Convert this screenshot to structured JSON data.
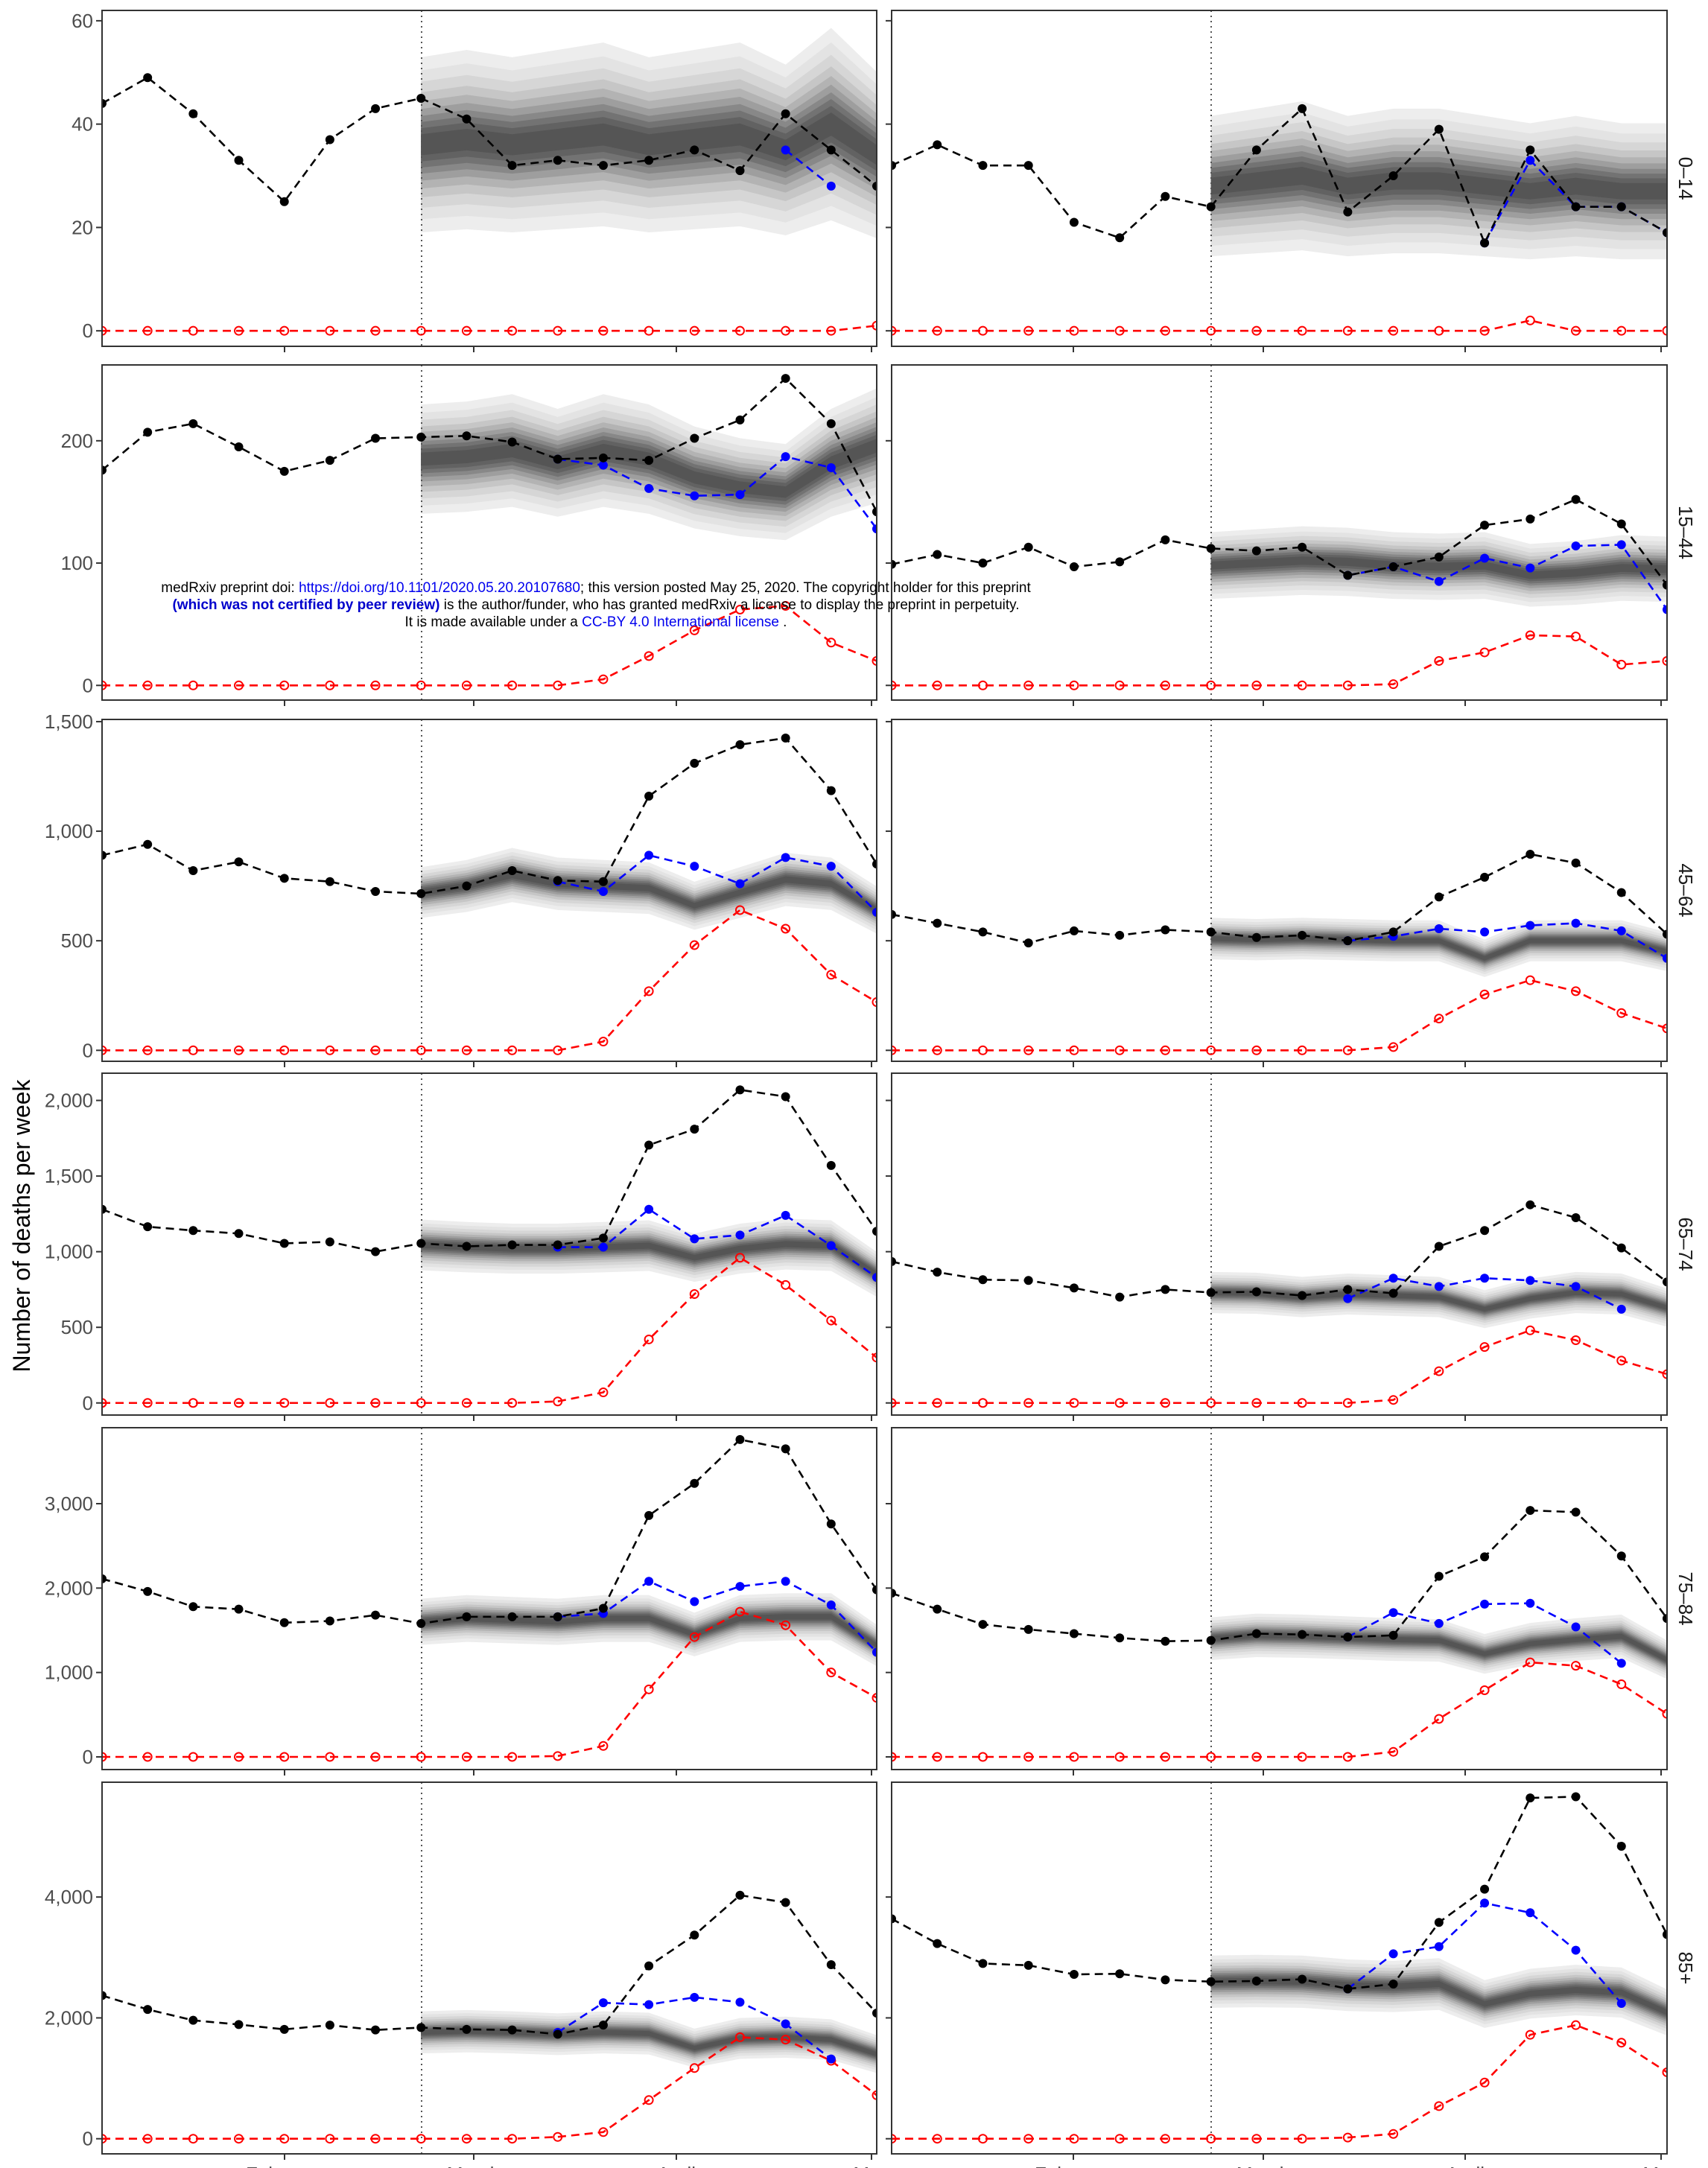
{
  "chart_data": {
    "type": "line",
    "ylabel": "Number of deaths per week",
    "x_ticks": [
      "February",
      "March",
      "April",
      "May"
    ],
    "colors": {
      "observed": "#000000",
      "adjusted": "#0000ff",
      "covid": "#ff0000",
      "band": "#555555"
    },
    "panels": [
      {
        "group": "0–14",
        "yticks": [
          "0",
          "20",
          "40",
          "60"
        ],
        "ylim": [
          -3,
          62
        ],
        "left": {
          "observed": [
            44,
            49,
            42,
            33,
            25,
            37,
            43,
            45,
            41,
            32,
            33,
            32,
            33,
            35,
            31,
            42,
            35,
            28
          ],
          "adjusted_from": 15,
          "adjusted": [
            35,
            28
          ],
          "median": [
            36,
            37,
            36,
            37,
            38,
            36,
            37,
            38,
            35,
            40,
            34,
            35,
            34
          ],
          "covid": [
            0,
            0,
            0,
            0,
            0,
            0,
            0,
            0,
            0,
            0,
            0,
            0,
            0,
            0,
            0,
            0,
            0,
            1
          ]
        },
        "right": {
          "observed": [
            32,
            36,
            32,
            32,
            21,
            18,
            26,
            24,
            35,
            43,
            23,
            30,
            39,
            17,
            35,
            24,
            24,
            19
          ],
          "adjusted_from": 13,
          "adjusted": [
            17,
            33,
            24,
            24,
            19
          ],
          "median": [
            28,
            29,
            30,
            28,
            29,
            29,
            28,
            27,
            28,
            27,
            27,
            26,
            24
          ],
          "covid": [
            0,
            0,
            0,
            0,
            0,
            0,
            0,
            0,
            0,
            0,
            0,
            0,
            0,
            0,
            2,
            0,
            0,
            0
          ]
        }
      },
      {
        "group": "15–44",
        "yticks": [
          "0",
          "100",
          "200"
        ],
        "ylim": [
          -12,
          262
        ],
        "left": {
          "observed": [
            176,
            207,
            214,
            195,
            175,
            184,
            202,
            203,
            204,
            199,
            185,
            186,
            184,
            202,
            217,
            251,
            214,
            142
          ],
          "adjusted_from": 10,
          "adjusted": [
            185,
            180,
            161,
            155,
            156,
            187,
            178,
            128
          ],
          "median": [
            185,
            187,
            192,
            182,
            192,
            185,
            170,
            162,
            158,
            182,
            196,
            185,
            140
          ],
          "covid": [
            0,
            0,
            0,
            0,
            0,
            0,
            0,
            0,
            0,
            0,
            0,
            5,
            24,
            45,
            62,
            65,
            35,
            20
          ]
        },
        "right": {
          "observed": [
            99,
            107,
            100,
            113,
            97,
            101,
            119,
            112,
            110,
            113,
            90,
            97,
            105,
            131,
            136,
            152,
            132,
            82
          ],
          "adjusted_from": 10,
          "adjusted": [
            90,
            97,
            85,
            104,
            96,
            114,
            115,
            62
          ],
          "median": [
            98,
            100,
            102,
            101,
            98,
            97,
            98,
            90,
            92,
            96,
            95,
            88,
            80
          ],
          "covid": [
            0,
            0,
            0,
            0,
            0,
            0,
            0,
            0,
            0,
            0,
            0,
            1,
            20,
            27,
            41,
            40,
            17,
            20
          ]
        }
      },
      {
        "group": "45–64",
        "yticks": [
          "0",
          "500",
          "1,000",
          "1,500"
        ],
        "ylim": [
          -50,
          1510
        ],
        "left": {
          "observed": [
            890,
            940,
            820,
            860,
            785,
            770,
            725,
            715,
            750,
            820,
            775,
            770,
            1160,
            1310,
            1395,
            1425,
            1185,
            850
          ],
          "adjusted_from": 10,
          "adjusted": [
            770,
            725,
            890,
            840,
            760,
            880,
            840,
            630
          ],
          "median": [
            720,
            750,
            800,
            760,
            750,
            740,
            660,
            720,
            780,
            760,
            640
          ],
          "covid": [
            0,
            0,
            0,
            0,
            0,
            0,
            0,
            0,
            0,
            0,
            0,
            40,
            270,
            480,
            640,
            555,
            345,
            220
          ]
        },
        "right": {
          "observed": [
            620,
            580,
            540,
            490,
            545,
            525,
            550,
            540,
            515,
            525,
            500,
            540,
            700,
            790,
            895,
            855,
            720,
            530
          ],
          "adjusted_from": 10,
          "adjusted": [
            500,
            520,
            555,
            540,
            570,
            580,
            545,
            420
          ],
          "median": [
            510,
            505,
            510,
            505,
            500,
            500,
            420,
            500,
            500,
            500,
            450
          ],
          "covid": [
            0,
            0,
            0,
            0,
            0,
            0,
            0,
            0,
            0,
            0,
            0,
            15,
            145,
            255,
            320,
            270,
            170,
            100
          ]
        }
      },
      {
        "group": "65–74",
        "yticks": [
          "0",
          "500",
          "1,000",
          "1,500",
          "2,000"
        ],
        "ylim": [
          -80,
          2180
        ],
        "left": {
          "observed": [
            1280,
            1165,
            1140,
            1120,
            1055,
            1065,
            1000,
            1055,
            1035,
            1045,
            1045,
            1090,
            1705,
            1810,
            2070,
            2025,
            1570,
            1135
          ],
          "adjusted_from": 10,
          "adjusted": [
            1030,
            1030,
            1280,
            1085,
            1110,
            1240,
            1040,
            830
          ],
          "median": [
            1045,
            1030,
            1020,
            1020,
            1030,
            1040,
            960,
            1020,
            1050,
            1040,
            850
          ],
          "covid": [
            0,
            0,
            0,
            0,
            0,
            0,
            0,
            0,
            0,
            0,
            10,
            70,
            420,
            720,
            960,
            780,
            545,
            300
          ]
        },
        "right": {
          "observed": [
            935,
            865,
            815,
            810,
            760,
            700,
            750,
            730,
            735,
            710,
            750,
            725,
            1035,
            1140,
            1310,
            1225,
            1025,
            800
          ],
          "adjusted_from": 10,
          "adjusted": [
            690,
            825,
            770,
            825,
            810,
            770,
            620
          ],
          "median": [
            730,
            725,
            700,
            720,
            710,
            700,
            620,
            690,
            730,
            720,
            630
          ],
          "covid": [
            0,
            0,
            0,
            0,
            0,
            0,
            0,
            0,
            0,
            0,
            0,
            20,
            210,
            370,
            480,
            415,
            280,
            190
          ]
        }
      },
      {
        "group": "75–84",
        "yticks": [
          "0",
          "1,000",
          "2,000",
          "3,000"
        ],
        "ylim": [
          -150,
          3900
        ],
        "left": {
          "observed": [
            2110,
            1960,
            1780,
            1750,
            1590,
            1610,
            1680,
            1580,
            1660,
            1660,
            1660,
            1760,
            2860,
            3240,
            3760,
            3650,
            2760,
            1980
          ],
          "adjusted_from": 10,
          "adjusted": [
            1660,
            1700,
            2080,
            1840,
            2020,
            2080,
            1800,
            1240
          ],
          "median": [
            1600,
            1640,
            1620,
            1600,
            1640,
            1640,
            1450,
            1640,
            1660,
            1660,
            1320
          ],
          "covid": [
            0,
            0,
            0,
            0,
            0,
            0,
            0,
            0,
            0,
            0,
            10,
            130,
            800,
            1420,
            1720,
            1560,
            1000,
            700
          ]
        },
        "right": {
          "observed": [
            1940,
            1750,
            1570,
            1510,
            1460,
            1410,
            1370,
            1380,
            1460,
            1450,
            1420,
            1440,
            2140,
            2370,
            2920,
            2900,
            2380,
            1640
          ],
          "adjusted_from": 10,
          "adjusted": [
            1420,
            1710,
            1580,
            1810,
            1820,
            1540,
            1110
          ],
          "median": [
            1400,
            1440,
            1430,
            1410,
            1390,
            1380,
            1220,
            1340,
            1390,
            1430,
            1150
          ],
          "covid": [
            0,
            0,
            0,
            0,
            0,
            0,
            0,
            0,
            0,
            0,
            0,
            60,
            450,
            790,
            1120,
            1080,
            860,
            510
          ]
        }
      },
      {
        "group": "85+",
        "yticks": [
          "0",
          "2,000",
          "4,000"
        ],
        "ylim": [
          -250,
          5900
        ],
        "left": {
          "observed": [
            2370,
            2140,
            1960,
            1890,
            1810,
            1880,
            1800,
            1840,
            1810,
            1800,
            1730,
            1880,
            2860,
            3370,
            4030,
            3910,
            2880,
            2080
          ],
          "adjusted_from": 10,
          "adjusted": [
            1760,
            2250,
            2220,
            2340,
            2260,
            1900,
            1320
          ],
          "median": [
            1760,
            1780,
            1760,
            1730,
            1760,
            1740,
            1500,
            1660,
            1680,
            1640,
            1400
          ],
          "covid": [
            0,
            0,
            0,
            0,
            0,
            0,
            0,
            0,
            0,
            0,
            30,
            110,
            640,
            1170,
            1680,
            1640,
            1290,
            720
          ]
        },
        "right": {
          "observed": [
            3640,
            3230,
            2900,
            2870,
            2720,
            2730,
            2630,
            2600,
            2610,
            2640,
            2480,
            2560,
            3580,
            4130,
            5640,
            5660,
            4840,
            3380
          ],
          "adjusted_from": 10,
          "adjusted": [
            2480,
            3060,
            3180,
            3900,
            3740,
            3120,
            2240
          ],
          "median": [
            2600,
            2610,
            2600,
            2540,
            2520,
            2560,
            2230,
            2400,
            2460,
            2420,
            2090
          ],
          "covid": [
            0,
            0,
            0,
            0,
            0,
            0,
            0,
            0,
            0,
            0,
            20,
            80,
            540,
            930,
            1720,
            1880,
            1590,
            1100
          ]
        }
      }
    ]
  },
  "notice": {
    "line1_prefix": "medRxiv preprint doi: ",
    "line1_link": "https://doi.org/10.1101/2020.05.20.20107680",
    "line1_suffix": "; this version posted May 25, 2020. The copyright holder for this preprint",
    "line2_bold": "(which was not certified by peer review)",
    "line2_rest": " is the author/funder, who has granted medRxiv a license to display the preprint in perpetuity.",
    "line3_prefix": "It is made available under a ",
    "line3_link": "CC-BY 4.0 International license",
    "line3_suffix": " ."
  }
}
